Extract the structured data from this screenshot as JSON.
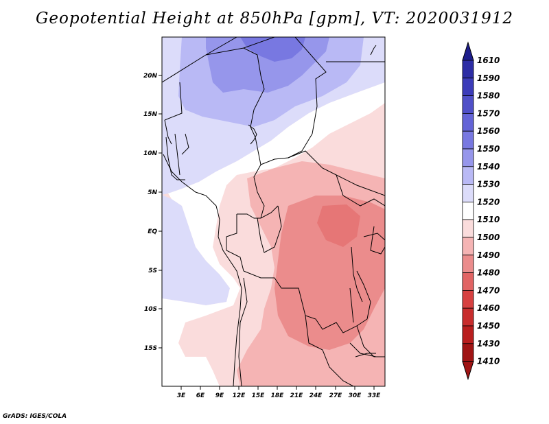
{
  "map": {
    "title": "Geopotential Height at 850hPa [gpm], VT: 2020031912",
    "footer": "GrADS: IGES/COLA",
    "region": "Central Africa",
    "lat_labels": [
      "20N",
      "15N",
      "10N",
      "5N",
      "EQ",
      "5S",
      "10S",
      "15S"
    ],
    "lon_labels": [
      "3E",
      "6E",
      "9E",
      "12E",
      "15E",
      "18E",
      "21E",
      "24E",
      "27E",
      "30E",
      "33E"
    ]
  },
  "legend": {
    "levels": [
      "1610",
      "1590",
      "1580",
      "1570",
      "1560",
      "1550",
      "1540",
      "1530",
      "1520",
      "1510",
      "1500",
      "1490",
      "1480",
      "1470",
      "1460",
      "1450",
      "1430",
      "1410"
    ],
    "colors": [
      "#1e1e8c",
      "#2d2da5",
      "#3c3cb9",
      "#5050c8",
      "#6464d7",
      "#7878e1",
      "#9696eb",
      "#b9b9f5",
      "#dcdcfa",
      "#ffffff",
      "#fadcdc",
      "#f5b4b4",
      "#eb8c8c",
      "#e16464",
      "#d74141",
      "#c82d2d",
      "#b91e1e",
      "#a01414"
    ]
  }
}
